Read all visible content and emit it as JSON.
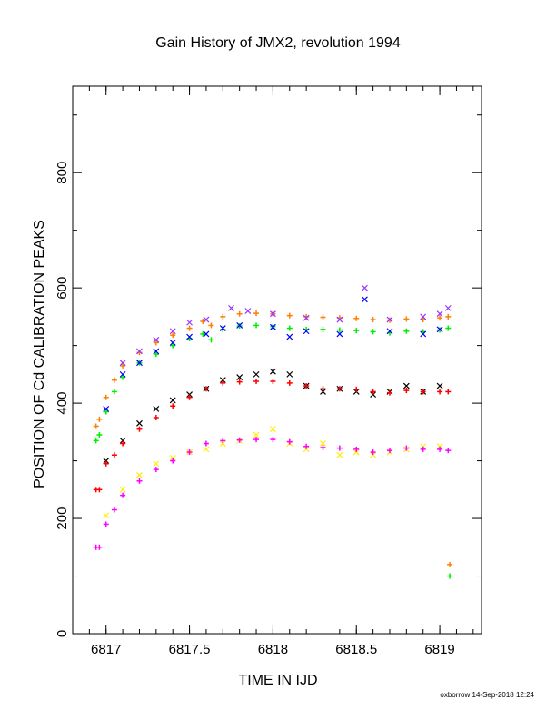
{
  "chart_data": {
    "type": "scatter",
    "title": "Gain History of JMX2, revolution 1994",
    "xlabel": "TIME IN IJD",
    "ylabel": "POSITION OF Cd CALIBRATION PEAKS",
    "xlim": [
      6816.8,
      6819.25
    ],
    "ylim": [
      0,
      950
    ],
    "x_ticks": [
      "6817",
      "6817.5",
      "6818",
      "6818.5",
      "6819"
    ],
    "x_tick_values": [
      6817,
      6817.5,
      6818,
      6818.5,
      6819
    ],
    "y_ticks": [
      "0",
      "200",
      "400",
      "600",
      "800"
    ],
    "y_tick_values": [
      0,
      200,
      400,
      600,
      800
    ],
    "grid": false,
    "series": [
      {
        "color": "#ff7f00",
        "marker": "plus",
        "values": [
          [
            6816.94,
            360
          ],
          [
            6816.96,
            372
          ],
          [
            6817.0,
            410
          ],
          [
            6817.05,
            440
          ],
          [
            6817.1,
            465
          ],
          [
            6817.2,
            488
          ],
          [
            6817.3,
            505
          ],
          [
            6817.4,
            518
          ],
          [
            6817.5,
            530
          ],
          [
            6817.58,
            542
          ],
          [
            6817.63,
            535
          ],
          [
            6817.7,
            550
          ],
          [
            6817.8,
            555
          ],
          [
            6817.9,
            556
          ],
          [
            6818.0,
            555
          ],
          [
            6818.1,
            552
          ],
          [
            6818.2,
            550
          ],
          [
            6818.3,
            549
          ],
          [
            6818.4,
            548
          ],
          [
            6818.5,
            547
          ],
          [
            6818.6,
            545
          ],
          [
            6818.7,
            544
          ],
          [
            6818.8,
            546
          ],
          [
            6818.9,
            545
          ],
          [
            6819.0,
            548
          ],
          [
            6819.05,
            550
          ],
          [
            6819.06,
            120
          ]
        ]
      },
      {
        "color": "#00ee00",
        "marker": "plus",
        "values": [
          [
            6816.94,
            335
          ],
          [
            6816.96,
            345
          ],
          [
            6817.0,
            385
          ],
          [
            6817.05,
            420
          ],
          [
            6817.1,
            445
          ],
          [
            6817.2,
            470
          ],
          [
            6817.3,
            485
          ],
          [
            6817.4,
            500
          ],
          [
            6817.5,
            512
          ],
          [
            6817.58,
            520
          ],
          [
            6817.63,
            510
          ],
          [
            6817.7,
            528
          ],
          [
            6817.8,
            534
          ],
          [
            6817.9,
            535
          ],
          [
            6818.0,
            533
          ],
          [
            6818.1,
            530
          ],
          [
            6818.2,
            528
          ],
          [
            6818.3,
            528
          ],
          [
            6818.4,
            527
          ],
          [
            6818.5,
            526
          ],
          [
            6818.6,
            524
          ],
          [
            6818.7,
            522
          ],
          [
            6818.8,
            525
          ],
          [
            6818.9,
            524
          ],
          [
            6819.0,
            527
          ],
          [
            6819.05,
            530
          ],
          [
            6819.06,
            100
          ]
        ]
      },
      {
        "color": "#0000ff",
        "marker": "cross",
        "values": [
          [
            6817.0,
            390
          ],
          [
            6817.1,
            450
          ],
          [
            6817.2,
            470
          ],
          [
            6817.3,
            490
          ],
          [
            6817.4,
            505
          ],
          [
            6817.5,
            515
          ],
          [
            6817.6,
            520
          ],
          [
            6817.7,
            530
          ],
          [
            6817.8,
            535
          ],
          [
            6818.0,
            532
          ],
          [
            6818.1,
            515
          ],
          [
            6818.2,
            525
          ],
          [
            6818.4,
            520
          ],
          [
            6818.55,
            580
          ],
          [
            6818.7,
            525
          ],
          [
            6818.9,
            520
          ],
          [
            6819.0,
            528
          ]
        ]
      },
      {
        "color": "#9933ff",
        "marker": "cross",
        "values": [
          [
            6817.1,
            470
          ],
          [
            6817.2,
            490
          ],
          [
            6817.3,
            510
          ],
          [
            6817.4,
            525
          ],
          [
            6817.5,
            540
          ],
          [
            6817.6,
            545
          ],
          [
            6817.75,
            565
          ],
          [
            6817.85,
            560
          ],
          [
            6818.0,
            555
          ],
          [
            6818.2,
            548
          ],
          [
            6818.4,
            545
          ],
          [
            6818.55,
            600
          ],
          [
            6818.7,
            545
          ],
          [
            6818.9,
            550
          ],
          [
            6819.0,
            555
          ],
          [
            6819.05,
            565
          ]
        ]
      },
      {
        "color": "#000000",
        "marker": "cross",
        "values": [
          [
            6817.0,
            300
          ],
          [
            6817.1,
            335
          ],
          [
            6817.2,
            365
          ],
          [
            6817.3,
            390
          ],
          [
            6817.4,
            405
          ],
          [
            6817.5,
            415
          ],
          [
            6817.6,
            425
          ],
          [
            6817.7,
            440
          ],
          [
            6817.8,
            445
          ],
          [
            6817.9,
            450
          ],
          [
            6818.0,
            455
          ],
          [
            6818.1,
            450
          ],
          [
            6818.2,
            430
          ],
          [
            6818.3,
            420
          ],
          [
            6818.4,
            425
          ],
          [
            6818.5,
            420
          ],
          [
            6818.6,
            415
          ],
          [
            6818.7,
            420
          ],
          [
            6818.8,
            430
          ],
          [
            6818.9,
            420
          ],
          [
            6819.0,
            430
          ]
        ]
      },
      {
        "color": "#ff0000",
        "marker": "plus",
        "values": [
          [
            6816.94,
            250
          ],
          [
            6816.96,
            250
          ],
          [
            6817.0,
            295
          ],
          [
            6817.05,
            310
          ],
          [
            6817.1,
            330
          ],
          [
            6817.2,
            355
          ],
          [
            6817.3,
            375
          ],
          [
            6817.4,
            395
          ],
          [
            6817.5,
            410
          ],
          [
            6817.6,
            425
          ],
          [
            6817.7,
            435
          ],
          [
            6817.8,
            437
          ],
          [
            6817.9,
            438
          ],
          [
            6818.0,
            438
          ],
          [
            6818.1,
            435
          ],
          [
            6818.2,
            430
          ],
          [
            6818.3,
            425
          ],
          [
            6818.4,
            425
          ],
          [
            6818.5,
            424
          ],
          [
            6818.6,
            420
          ],
          [
            6818.7,
            418
          ],
          [
            6818.8,
            422
          ],
          [
            6818.9,
            420
          ],
          [
            6819.0,
            420
          ],
          [
            6819.05,
            420
          ]
        ]
      },
      {
        "color": "#ffee00",
        "marker": "cross",
        "values": [
          [
            6817.0,
            205
          ],
          [
            6817.1,
            250
          ],
          [
            6817.2,
            275
          ],
          [
            6817.3,
            295
          ],
          [
            6817.4,
            305
          ],
          [
            6817.5,
            315
          ],
          [
            6817.6,
            320
          ],
          [
            6817.7,
            330
          ],
          [
            6817.8,
            335
          ],
          [
            6817.9,
            345
          ],
          [
            6818.0,
            355
          ],
          [
            6818.1,
            330
          ],
          [
            6818.2,
            320
          ],
          [
            6818.3,
            330
          ],
          [
            6818.4,
            310
          ],
          [
            6818.5,
            315
          ],
          [
            6818.6,
            310
          ],
          [
            6818.7,
            315
          ],
          [
            6818.8,
            320
          ],
          [
            6818.9,
            325
          ],
          [
            6819.0,
            325
          ]
        ]
      },
      {
        "color": "#ff00ff",
        "marker": "plus",
        "values": [
          [
            6816.94,
            150
          ],
          [
            6816.96,
            150
          ],
          [
            6817.0,
            190
          ],
          [
            6817.05,
            215
          ],
          [
            6817.1,
            240
          ],
          [
            6817.2,
            265
          ],
          [
            6817.3,
            285
          ],
          [
            6817.4,
            300
          ],
          [
            6817.5,
            315
          ],
          [
            6817.6,
            330
          ],
          [
            6817.7,
            335
          ],
          [
            6817.8,
            336
          ],
          [
            6817.9,
            337
          ],
          [
            6818.0,
            337
          ],
          [
            6818.1,
            333
          ],
          [
            6818.2,
            325
          ],
          [
            6818.3,
            323
          ],
          [
            6818.4,
            322
          ],
          [
            6818.5,
            320
          ],
          [
            6818.6,
            315
          ],
          [
            6818.7,
            318
          ],
          [
            6818.8,
            322
          ],
          [
            6818.9,
            320
          ],
          [
            6819.0,
            320
          ],
          [
            6819.05,
            318
          ]
        ]
      }
    ]
  },
  "footer": {
    "credit": "oxborrow 14-Sep-2018 12:24"
  }
}
